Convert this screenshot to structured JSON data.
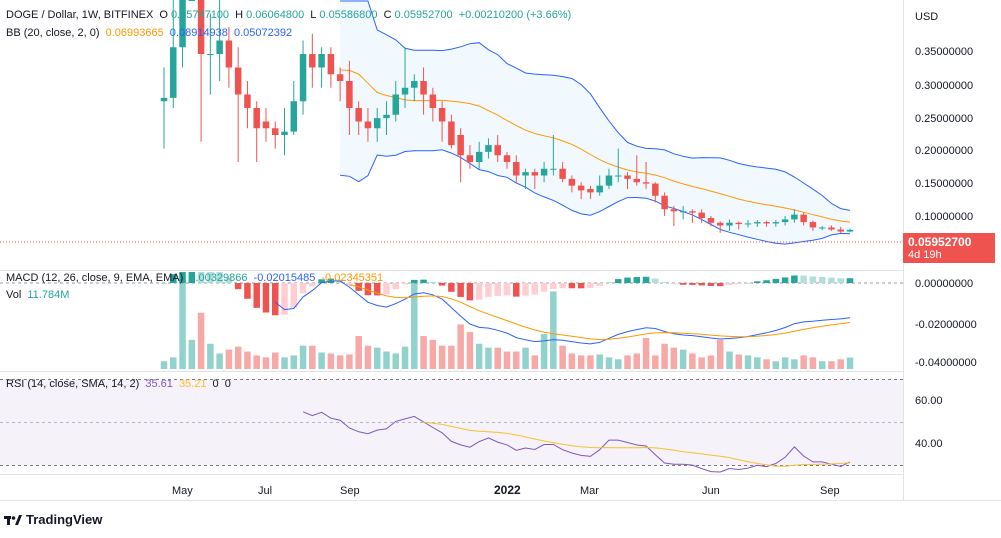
{
  "header": {
    "symbol": "DOGE / Dollar, 1W, BITFINEX",
    "o_label": "O",
    "o": "0.05747100",
    "h_label": "H",
    "h": "0.06064800",
    "l_label": "L",
    "l": "0.05586800",
    "c_label": "C",
    "c": "0.05952700",
    "change": "+0.00210200 (+3.66%)"
  },
  "bb_legend": {
    "label": "BB (20, close, 2, 0)",
    "basis": "0.06993665",
    "upper": "0.08914938",
    "lower": "0.05072392"
  },
  "macd_legend": {
    "label": "MACD (12, 26, close, 9, EMA, EMA)",
    "hist": "0.00329866",
    "macd": "-0.02015485",
    "signal": "-0.02345351"
  },
  "vol_legend": {
    "label": "Vol",
    "value": "11.784M"
  },
  "rsi_legend": {
    "label": "RSI (14, close, SMA, 14, 2)",
    "rsi": "35.61",
    "sma": "35.21",
    "extra1": "0",
    "extra2": "0"
  },
  "price_axis": {
    "unit": "USD",
    "ticks": [
      "0.35000000",
      "0.30000000",
      "0.25000000",
      "0.20000000",
      "0.15000000",
      "0.10000000"
    ]
  },
  "last_price": {
    "value": "0.05952700",
    "countdown": "4d 19h"
  },
  "macd_axis": {
    "ticks": [
      "0.00000000",
      "-0.02000000",
      "-0.04000000"
    ]
  },
  "rsi_axis": {
    "ticks": [
      "60.00",
      "40.00"
    ]
  },
  "time_axis": {
    "labels": [
      "May",
      "Jul",
      "Sep",
      "2022",
      "Mar",
      "Jun",
      "Sep"
    ]
  },
  "branding": {
    "name": "TradingView"
  },
  "colors": {
    "up": "#26a69a",
    "down": "#ef5350",
    "bb_basis": "#ff9800",
    "bb_band": "#2962ff",
    "macd": "#2962ff",
    "signal": "#ff9800",
    "rsi": "#7e57c2",
    "rsi_sma": "#fbc02d"
  },
  "chart_data": {
    "type": "candlestick",
    "x": [
      "2021-04-19",
      "2021-04-26",
      "2021-05-03",
      "2021-05-10",
      "2021-05-17",
      "2021-05-24",
      "2021-05-31",
      "2021-06-07",
      "2021-06-14",
      "2021-06-21",
      "2021-06-28",
      "2021-07-05",
      "2021-07-12",
      "2021-07-19",
      "2021-07-26",
      "2021-08-02",
      "2021-08-09",
      "2021-08-16",
      "2021-08-23",
      "2021-08-30",
      "2021-09-06",
      "2021-09-13",
      "2021-09-20",
      "2021-09-27",
      "2021-10-04",
      "2021-10-11",
      "2021-10-18",
      "2021-10-25",
      "2021-11-01",
      "2021-11-08",
      "2021-11-15",
      "2021-11-22",
      "2021-11-29",
      "2021-12-06",
      "2021-12-13",
      "2021-12-20",
      "2021-12-27",
      "2022-01-03",
      "2022-01-10",
      "2022-01-17",
      "2022-01-24",
      "2022-01-31",
      "2022-02-07",
      "2022-02-14",
      "2022-02-21",
      "2022-02-28",
      "2022-03-07",
      "2022-03-14",
      "2022-03-21",
      "2022-03-28",
      "2022-04-04",
      "2022-04-11",
      "2022-04-18",
      "2022-04-25",
      "2022-05-02",
      "2022-05-09",
      "2022-05-16",
      "2022-05-23",
      "2022-05-30",
      "2022-06-06",
      "2022-06-13",
      "2022-06-20",
      "2022-06-27",
      "2022-07-04",
      "2022-07-11",
      "2022-07-18",
      "2022-07-25",
      "2022-08-01",
      "2022-08-08",
      "2022-08-15",
      "2022-08-22",
      "2022-08-29",
      "2022-09-05",
      "2022-09-12",
      "2022-09-19"
    ],
    "open": [
      0.25,
      0.255,
      0.33,
      0.48,
      0.5,
      0.32,
      0.32,
      0.34,
      0.3,
      0.26,
      0.24,
      0.22,
      0.21,
      0.2,
      0.205,
      0.25,
      0.32,
      0.3,
      0.32,
      0.29,
      0.28,
      0.24,
      0.22,
      0.21,
      0.225,
      0.23,
      0.26,
      0.27,
      0.28,
      0.26,
      0.24,
      0.22,
      0.2,
      0.17,
      0.16,
      0.175,
      0.185,
      0.17,
      0.16,
      0.14,
      0.145,
      0.14,
      0.15,
      0.15,
      0.135,
      0.125,
      0.12,
      0.115,
      0.125,
      0.14,
      0.14,
      0.135,
      0.13,
      0.128,
      0.11,
      0.09,
      0.087,
      0.087,
      0.085,
      0.077,
      0.07,
      0.066,
      0.07,
      0.068,
      0.069,
      0.071,
      0.069,
      0.071,
      0.075,
      0.082,
      0.071,
      0.063,
      0.063,
      0.06,
      0.057
    ],
    "close": [
      0.255,
      0.33,
      0.48,
      0.5,
      0.32,
      0.32,
      0.34,
      0.3,
      0.26,
      0.24,
      0.21,
      0.21,
      0.2,
      0.205,
      0.25,
      0.32,
      0.3,
      0.32,
      0.29,
      0.28,
      0.24,
      0.22,
      0.21,
      0.225,
      0.23,
      0.26,
      0.27,
      0.28,
      0.26,
      0.24,
      0.22,
      0.185,
      0.17,
      0.16,
      0.175,
      0.185,
      0.17,
      0.16,
      0.14,
      0.145,
      0.14,
      0.15,
      0.15,
      0.135,
      0.125,
      0.118,
      0.115,
      0.125,
      0.14,
      0.14,
      0.135,
      0.13,
      0.128,
      0.11,
      0.09,
      0.087,
      0.087,
      0.085,
      0.077,
      0.07,
      0.066,
      0.07,
      0.068,
      0.069,
      0.071,
      0.069,
      0.071,
      0.075,
      0.082,
      0.071,
      0.063,
      0.063,
      0.06,
      0.057,
      0.0595
    ],
    "high": [
      0.3,
      0.44,
      0.56,
      0.74,
      0.6,
      0.38,
      0.44,
      0.36,
      0.33,
      0.28,
      0.25,
      0.24,
      0.22,
      0.24,
      0.28,
      0.34,
      0.35,
      0.33,
      0.33,
      0.3,
      0.31,
      0.25,
      0.24,
      0.24,
      0.25,
      0.28,
      0.33,
      0.29,
      0.3,
      0.27,
      0.25,
      0.23,
      0.21,
      0.185,
      0.19,
      0.195,
      0.2,
      0.175,
      0.17,
      0.15,
      0.15,
      0.16,
      0.2,
      0.16,
      0.14,
      0.13,
      0.125,
      0.14,
      0.15,
      0.18,
      0.145,
      0.17,
      0.16,
      0.13,
      0.115,
      0.095,
      0.095,
      0.09,
      0.09,
      0.08,
      0.072,
      0.075,
      0.072,
      0.074,
      0.074,
      0.073,
      0.074,
      0.08,
      0.09,
      0.085,
      0.073,
      0.065,
      0.066,
      0.064,
      0.061
    ],
    "low": [
      0.18,
      0.24,
      0.3,
      0.44,
      0.19,
      0.26,
      0.28,
      0.27,
      0.16,
      0.21,
      0.16,
      0.19,
      0.18,
      0.17,
      0.2,
      0.23,
      0.27,
      0.27,
      0.27,
      0.25,
      0.2,
      0.2,
      0.19,
      0.19,
      0.2,
      0.22,
      0.24,
      0.25,
      0.23,
      0.22,
      0.19,
      0.18,
      0.13,
      0.15,
      0.15,
      0.165,
      0.16,
      0.15,
      0.13,
      0.12,
      0.12,
      0.13,
      0.14,
      0.13,
      0.115,
      0.105,
      0.105,
      0.11,
      0.12,
      0.13,
      0.12,
      0.125,
      0.12,
      0.1,
      0.08,
      0.065,
      0.075,
      0.07,
      0.07,
      0.065,
      0.055,
      0.058,
      0.06,
      0.063,
      0.064,
      0.064,
      0.064,
      0.066,
      0.07,
      0.066,
      0.058,
      0.059,
      0.058,
      0.055,
      0.0559
    ],
    "volume": [
      8,
      12,
      92,
      30,
      58,
      26,
      16,
      20,
      23,
      18,
      14,
      12,
      17,
      12,
      14,
      24,
      24,
      17,
      16,
      14,
      15,
      34,
      24,
      22,
      18,
      16,
      23,
      92,
      34,
      30,
      24,
      24,
      46,
      38,
      26,
      22,
      22,
      18,
      18,
      22,
      14,
      36,
      80,
      24,
      16,
      14,
      14,
      15,
      12,
      10,
      14,
      16,
      32,
      14,
      26,
      22,
      20,
      16,
      12,
      14,
      30,
      18,
      15,
      14,
      12,
      10,
      8,
      12,
      10,
      14,
      12,
      8,
      8,
      10,
      11.784
    ],
    "price_range": [
      0.0,
      0.4
    ]
  }
}
